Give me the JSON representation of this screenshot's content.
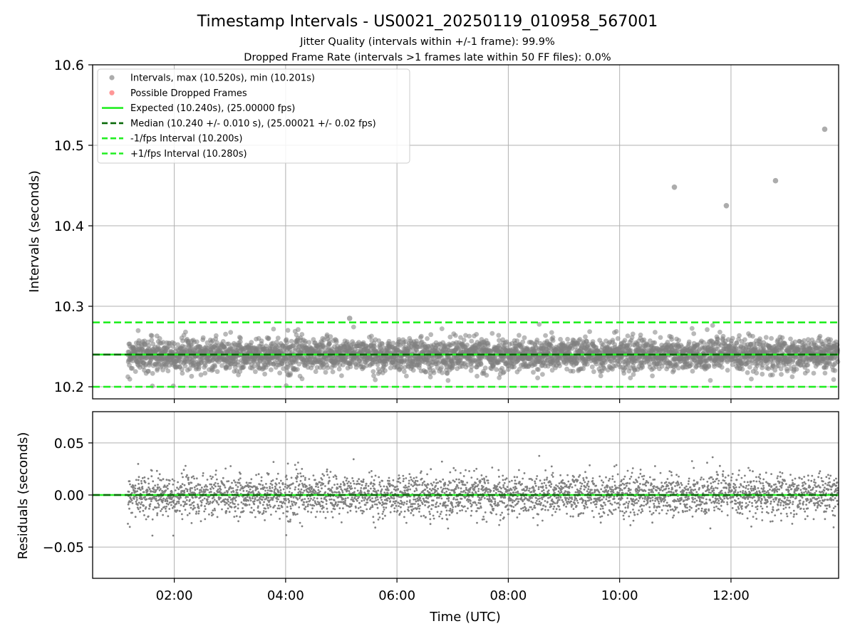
{
  "figure": {
    "title": "Timestamp Intervals - US0021_20250119_010958_567001",
    "subtitle_1": "Jitter Quality (intervals within +/-1 frame): 99.9%",
    "subtitle_2": "Dropped Frame Rate (intervals >1 frames late within 50 FF files): 0.0%"
  },
  "colors": {
    "points": "#808080",
    "dropped": "#ff6060",
    "expected": "#22ee22",
    "median": "#0a6a0a",
    "bounds": "#22ee22",
    "grid": "#b0b0b0"
  },
  "chart_data": [
    {
      "type": "scatter",
      "panel": "top",
      "ylabel": "Intervals (seconds)",
      "xlabel": "",
      "ylim": [
        10.185,
        10.6
      ],
      "xlim": [
        "00:32",
        "13:56"
      ],
      "grid": true,
      "legend_position": "upper-left",
      "yticks": [
        "10.2",
        "10.3",
        "10.4",
        "10.5",
        "10.6"
      ],
      "legend": [
        {
          "kind": "marker",
          "color": "#808080",
          "label": "Intervals, max (10.520s), min (10.201s)"
        },
        {
          "kind": "marker",
          "color": "#ff6060",
          "label": "Possible Dropped Frames"
        },
        {
          "kind": "solid",
          "color": "#22ee22",
          "label": "Expected (10.240s), (25.00000 fps)"
        },
        {
          "kind": "dashed",
          "color": "#0a6a0a",
          "label": "Median (10.240 +/- 0.010 s), (25.00021 +/- 0.02 fps)"
        },
        {
          "kind": "dashed",
          "color": "#22ee22",
          "label": "-1/fps Interval (10.200s)"
        },
        {
          "kind": "dashed",
          "color": "#22ee22",
          "label": "+1/fps Interval (10.280s)"
        }
      ],
      "reference_lines": {
        "expected": 10.24,
        "median": 10.24,
        "lower": 10.2,
        "upper": 10.28
      },
      "series_distribution": {
        "start": "01:10",
        "end": "13:56",
        "center": 10.24,
        "std": 0.01,
        "min": 10.201,
        "max": 10.52,
        "count": 3750
      },
      "outliers": [
        {
          "time": "10:59",
          "value": 10.448
        },
        {
          "time": "11:55",
          "value": 10.425
        },
        {
          "time": "12:48",
          "value": 10.456
        },
        {
          "time": "13:41",
          "value": 10.52
        },
        {
          "time": "05:09",
          "value": 10.285
        }
      ]
    },
    {
      "type": "scatter",
      "panel": "bottom",
      "ylabel": "Residuals (seconds)",
      "xlabel": "Time (UTC)",
      "ylim": [
        -0.08,
        0.08
      ],
      "xlim": [
        "00:32",
        "13:56"
      ],
      "grid": true,
      "yticks": [
        "0.05",
        "0.00",
        "−0.05"
      ],
      "xticks": [
        "02:00",
        "04:00",
        "06:00",
        "08:00",
        "10:00",
        "12:00"
      ],
      "reference_lines": {
        "zero": 0.0
      },
      "series_distribution": {
        "start": "01:10",
        "end": "13:56",
        "center": 0.0,
        "std": 0.01,
        "min": -0.039,
        "max": 0.045,
        "count": 3750
      }
    }
  ]
}
